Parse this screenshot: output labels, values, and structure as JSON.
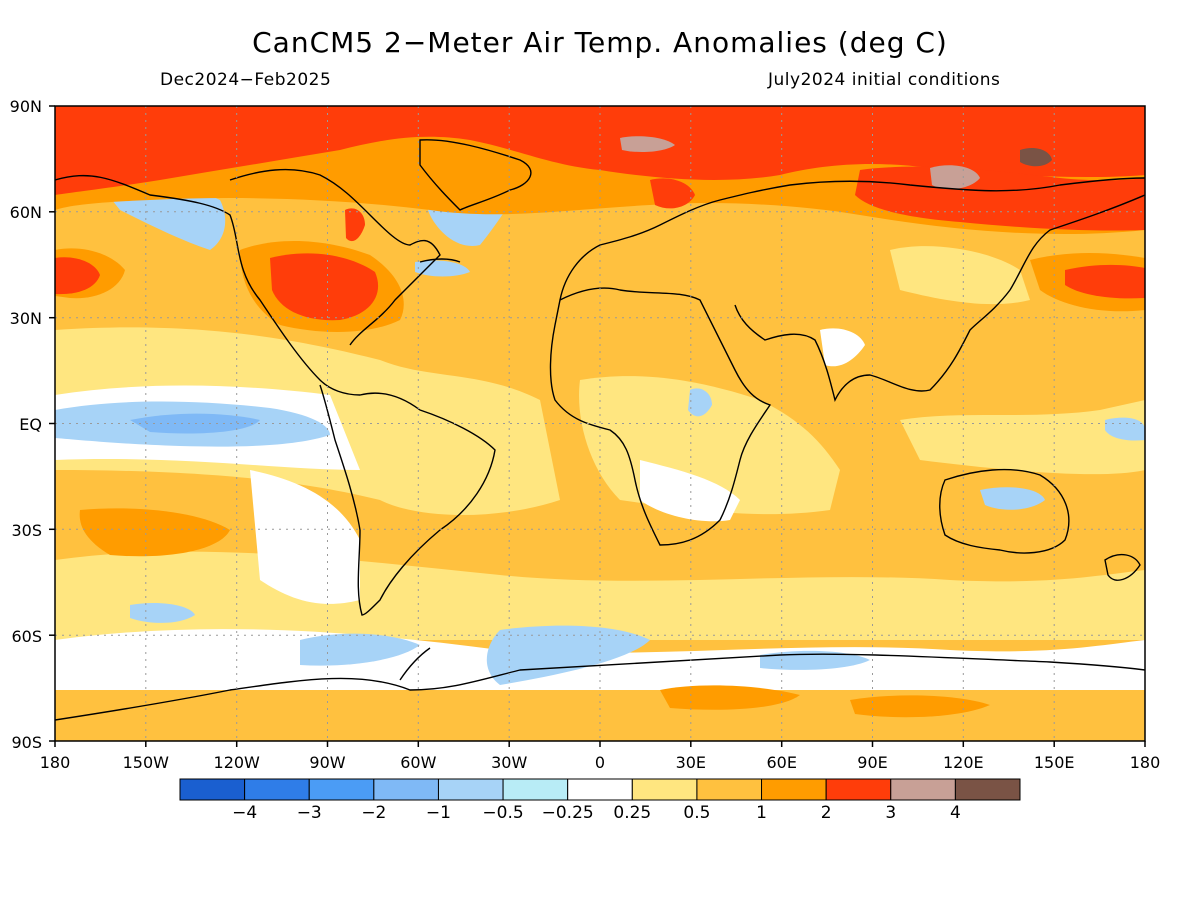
{
  "title": "CanCM5 2−Meter Air Temp. Anomalies (deg C)",
  "subtitle_left": "Dec2024−Feb2025",
  "subtitle_right": "July2024 initial conditions",
  "map": {
    "lon_ticks": [
      "180",
      "150W",
      "120W",
      "90W",
      "60W",
      "30W",
      "0",
      "30E",
      "60E",
      "90E",
      "120E",
      "150E",
      "180"
    ],
    "lat_ticks": [
      "90N",
      "60N",
      "30N",
      "EQ",
      "30S",
      "60S",
      "90S"
    ],
    "grid": "dotted"
  },
  "colorbar": {
    "colors": [
      "#1a5fd0",
      "#2f7de8",
      "#4b9cf5",
      "#7fb9f6",
      "#a7d3f7",
      "#b8ecf6",
      "#ffffff",
      "#ffe680",
      "#ffc13f",
      "#ff9c00",
      "#ff3d0a",
      "#c8a096",
      "#7a5345"
    ],
    "labels": [
      "−4",
      "−3",
      "−2",
      "−1",
      "−0.5",
      "−0.25",
      "0.25",
      "0.5",
      "1",
      "2",
      "3",
      "4"
    ]
  },
  "legend_unit": "deg C"
}
